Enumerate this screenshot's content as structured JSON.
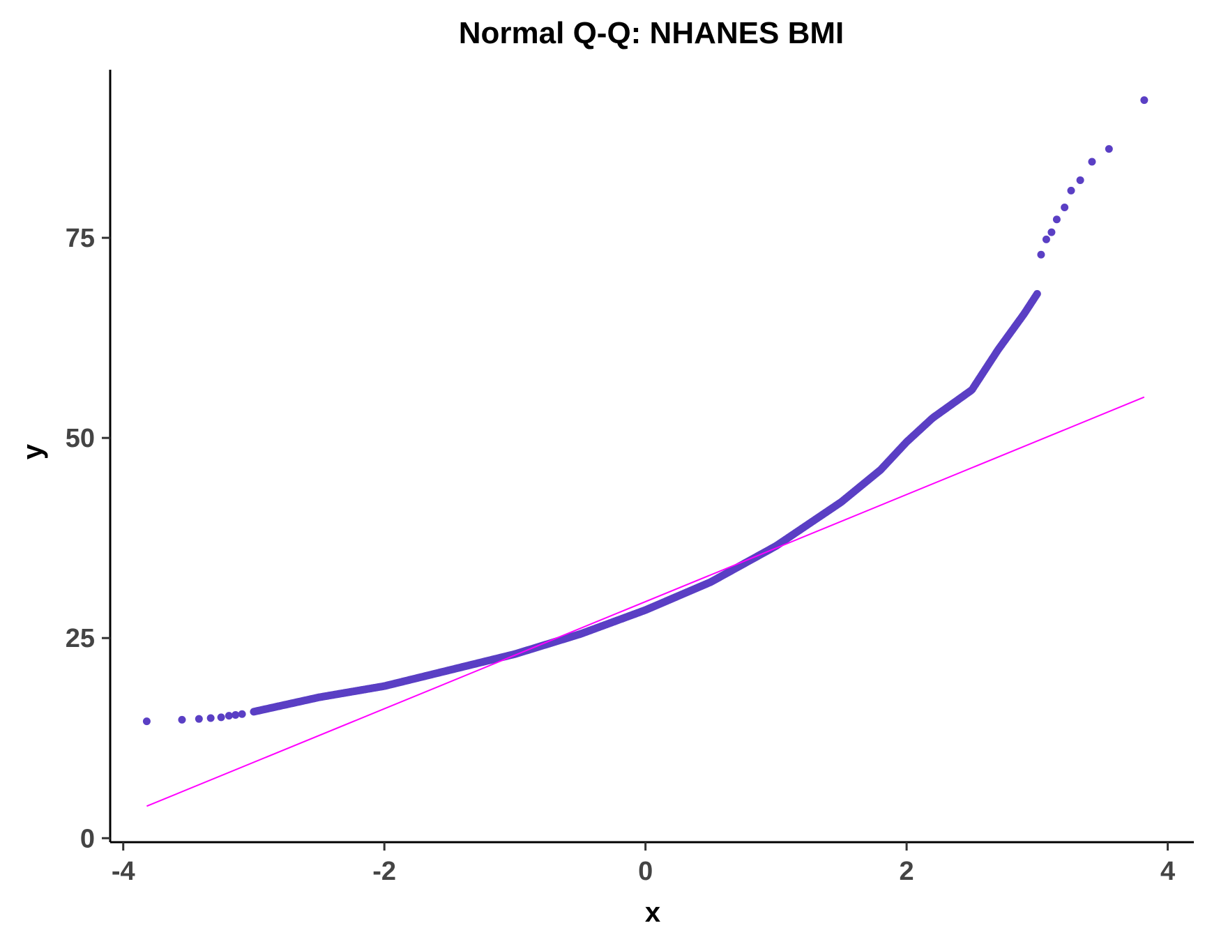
{
  "chart_data": {
    "type": "scatter",
    "title": "Normal Q-Q: NHANES BMI",
    "xlabel": "x",
    "ylabel": "y",
    "xlim": [
      -4.1,
      4.2
    ],
    "ylim": [
      -0.5,
      96
    ],
    "x_ticks": [
      -4,
      -2,
      0,
      2,
      4
    ],
    "x_tick_labels": [
      "-4",
      "-2",
      "0",
      "2",
      "4"
    ],
    "y_ticks": [
      0,
      25,
      50,
      75
    ],
    "y_tick_labels": [
      "0",
      "25",
      "50",
      "75"
    ],
    "grid": false,
    "legend": "none",
    "point_color": "#5a3fc4",
    "line_color": "#ff00ff",
    "reference_line": {
      "x": [
        -3.82,
        3.82
      ],
      "y": [
        4.0,
        55.1
      ]
    },
    "quantile_curve": [
      [
        -3.0,
        15.8
      ],
      [
        -2.5,
        17.6
      ],
      [
        -2.0,
        19.0
      ],
      [
        -1.5,
        21.0
      ],
      [
        -1.0,
        23.0
      ],
      [
        -0.5,
        25.5
      ],
      [
        0.0,
        28.5
      ],
      [
        0.5,
        32.0
      ],
      [
        1.0,
        36.5
      ],
      [
        1.5,
        42.0
      ],
      [
        1.8,
        46.0
      ],
      [
        2.0,
        49.5
      ],
      [
        2.2,
        52.5
      ],
      [
        2.5,
        56.0
      ],
      [
        2.7,
        61.0
      ],
      [
        2.9,
        65.5
      ],
      [
        3.0,
        68.0
      ]
    ],
    "points": [
      [
        -3.82,
        14.6
      ],
      [
        -3.55,
        14.8
      ],
      [
        -3.42,
        14.9
      ],
      [
        -3.33,
        15.0
      ],
      [
        -3.25,
        15.1
      ],
      [
        -3.19,
        15.3
      ],
      [
        -3.14,
        15.4
      ],
      [
        -3.09,
        15.5
      ],
      [
        3.03,
        72.9
      ],
      [
        3.07,
        74.8
      ],
      [
        3.11,
        75.7
      ],
      [
        3.15,
        77.3
      ],
      [
        3.21,
        78.8
      ],
      [
        3.26,
        80.9
      ],
      [
        3.33,
        82.2
      ],
      [
        3.42,
        84.5
      ],
      [
        3.55,
        86.1
      ],
      [
        3.82,
        92.2
      ]
    ]
  }
}
